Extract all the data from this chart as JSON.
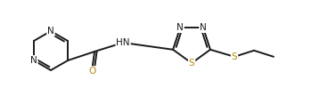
{
  "bg_color": "#ffffff",
  "bond_color": "#1a1a1a",
  "atom_colors": {
    "N": "#1a1a1a",
    "O": "#b8860b",
    "S": "#b8860b",
    "C": "#1a1a1a"
  },
  "figsize": [
    3.5,
    1.17
  ],
  "dpi": 100,
  "lw": 1.4,
  "fs": 7.5
}
